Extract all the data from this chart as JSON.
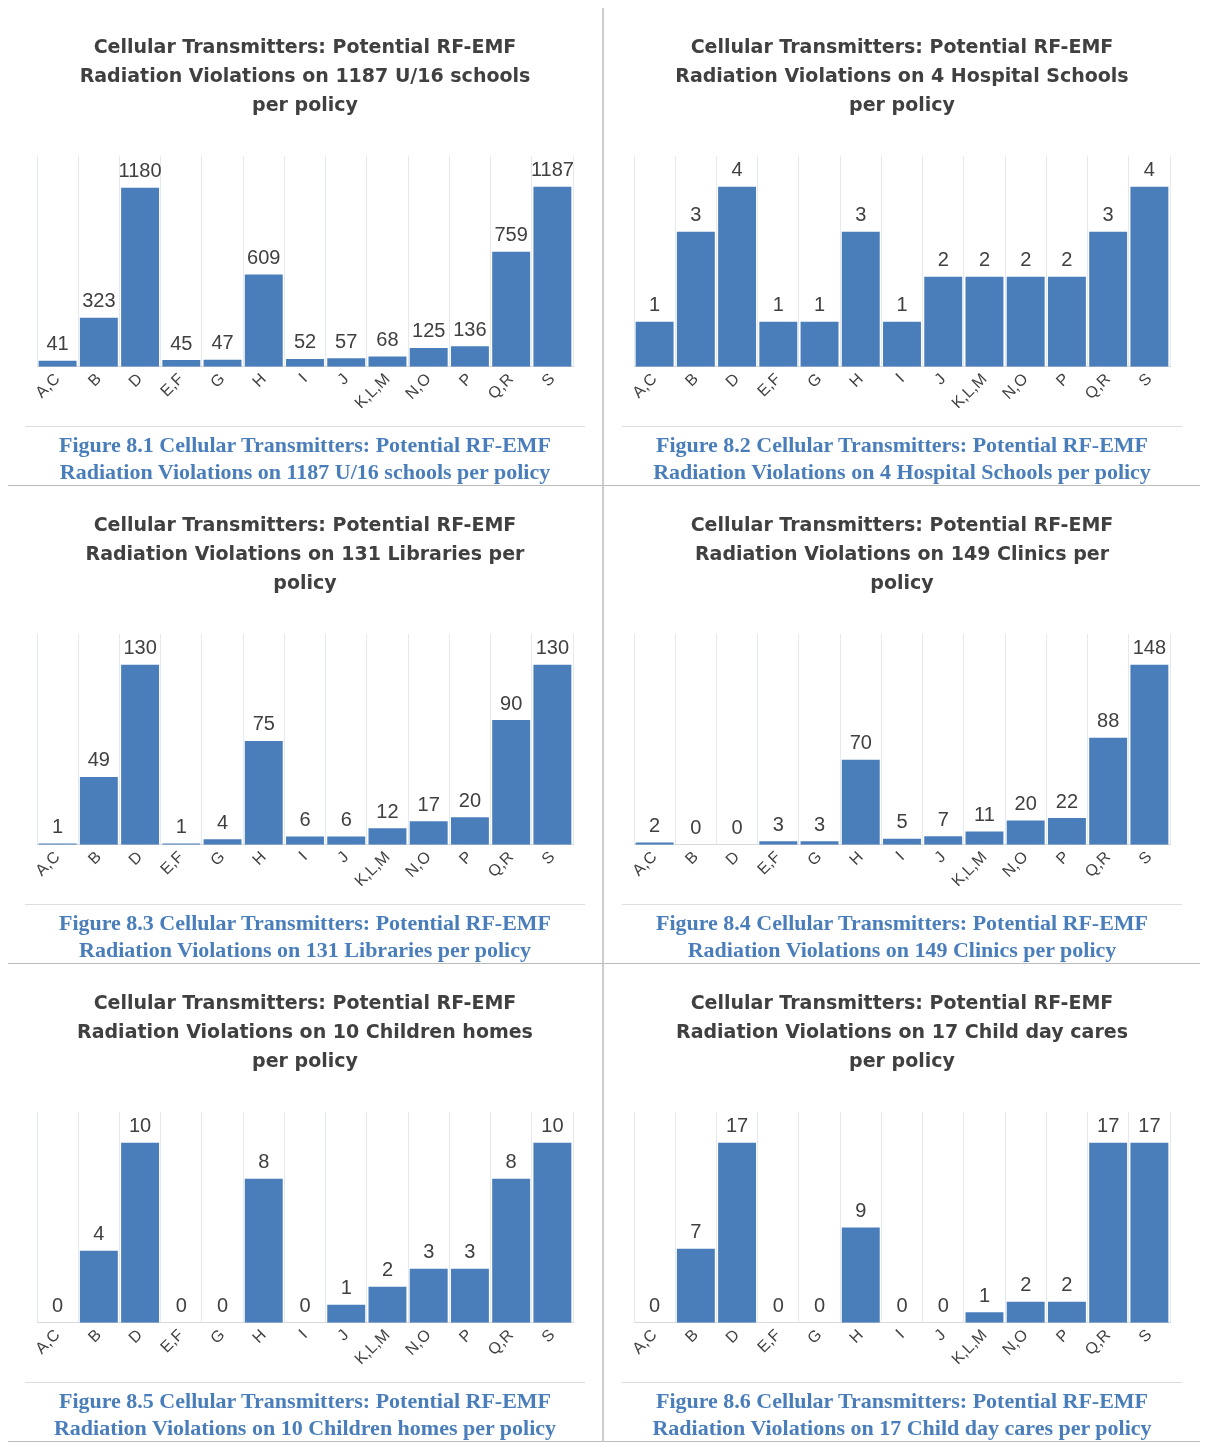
{
  "chart_data": [
    {
      "type": "bar",
      "title": "Cellular Transmitters: Potential RF-EMF Radiation Violations on 1187 U/16 schools per policy",
      "categories": [
        "A,C",
        "B",
        "D",
        "E,F",
        "G",
        "H",
        "I",
        "J",
        "K,L,M",
        "N,O",
        "P",
        "Q,R",
        "S"
      ],
      "values": [
        41,
        323,
        1180,
        45,
        47,
        609,
        52,
        57,
        68,
        125,
        136,
        759,
        1187
      ],
      "color": "#4a7ebb",
      "data_labels": true,
      "grid": "x",
      "legend": false,
      "annotations": [
        "Figure 8.1  Cellular Transmitters: Potential RF-EMF Radiation Violations on 1187 U/16 schools per policy"
      ]
    },
    {
      "type": "bar",
      "title": "Cellular Transmitters: Potential RF-EMF Radiation Violations on 4 Hospital Schools per policy",
      "categories": [
        "A,C",
        "B",
        "D",
        "E,F",
        "G",
        "H",
        "I",
        "J",
        "K,L,M",
        "N,O",
        "P",
        "Q,R",
        "S"
      ],
      "values": [
        1,
        3,
        4,
        1,
        1,
        3,
        1,
        2,
        2,
        2,
        2,
        3,
        4
      ],
      "color": "#4a7ebb",
      "data_labels": true,
      "grid": "x",
      "legend": false,
      "annotations": [
        "Figure 8.2  Cellular Transmitters: Potential RF-EMF Radiation Violations on 4 Hospital Schools per policy"
      ]
    },
    {
      "type": "bar",
      "title": "Cellular Transmitters: Potential RF-EMF Radiation Violations on 131 Libraries per policy",
      "categories": [
        "A,C",
        "B",
        "D",
        "E,F",
        "G",
        "H",
        "I",
        "J",
        "K,L,M",
        "N,O",
        "P",
        "Q,R",
        "S"
      ],
      "values": [
        1,
        49,
        130,
        1,
        4,
        75,
        6,
        6,
        12,
        17,
        20,
        90,
        130
      ],
      "color": "#4a7ebb",
      "data_labels": true,
      "grid": "x",
      "legend": false,
      "annotations": [
        "Figure 8.3  Cellular Transmitters: Potential RF-EMF Radiation Violations on 131 Libraries per policy"
      ]
    },
    {
      "type": "bar",
      "title": "Cellular Transmitters: Potential RF-EMF Radiation Violations on 149 Clinics per policy",
      "categories": [
        "A,C",
        "B",
        "D",
        "E,F",
        "G",
        "H",
        "I",
        "J",
        "K,L,M",
        "N,O",
        "P",
        "Q,R",
        "S"
      ],
      "values": [
        2,
        0,
        0,
        3,
        3,
        70,
        5,
        7,
        11,
        20,
        22,
        88,
        148
      ],
      "color": "#4a7ebb",
      "data_labels": true,
      "grid": "x",
      "legend": false,
      "annotations": [
        "Figure 8.4  Cellular Transmitters: Potential RF-EMF Radiation Violations on 149 Clinics per policy"
      ]
    },
    {
      "type": "bar",
      "title": "Cellular Transmitters: Potential RF-EMF Radiation Violations on 10 Children homes per policy",
      "categories": [
        "A,C",
        "B",
        "D",
        "E,F",
        "G",
        "H",
        "I",
        "J",
        "K,L,M",
        "N,O",
        "P",
        "Q,R",
        "S"
      ],
      "values": [
        0,
        4,
        10,
        0,
        0,
        8,
        0,
        1,
        2,
        3,
        3,
        8,
        10
      ],
      "color": "#4a7ebb",
      "data_labels": true,
      "grid": "x",
      "legend": false,
      "annotations": [
        "Figure 8.5  Cellular Transmitters: Potential RF-EMF Radiation Violations on 10 Children homes per policy"
      ]
    },
    {
      "type": "bar",
      "title": "Cellular Transmitters: Potential RF-EMF Radiation Violations on 17 Child day cares per policy",
      "categories": [
        "A,C",
        "B",
        "D",
        "E,F",
        "G",
        "H",
        "I",
        "J",
        "K,L,M",
        "N,O",
        "P",
        "Q,R",
        "S"
      ],
      "values": [
        0,
        7,
        17,
        0,
        0,
        9,
        0,
        0,
        1,
        2,
        2,
        17,
        17
      ],
      "color": "#4a7ebb",
      "data_labels": true,
      "grid": "x",
      "legend": false,
      "annotations": [
        "Figure 8.6  Cellular Transmitters: Potential RF-EMF Radiation Violations on 17 Child day cares per policy"
      ]
    }
  ]
}
